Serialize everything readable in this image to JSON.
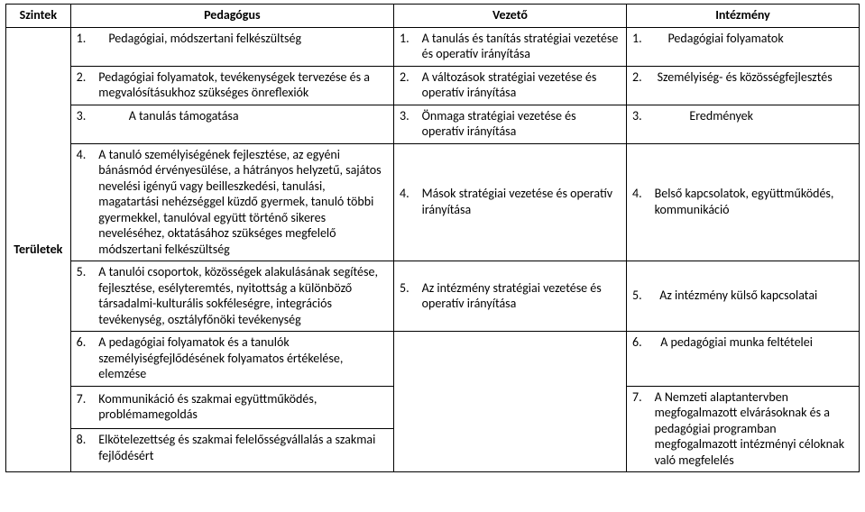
{
  "header": {
    "side": "Szintek",
    "col1": "Pedagógus",
    "col2": "Vezető",
    "col3": "Intézmény"
  },
  "side_label": "Területek",
  "rows": [
    {
      "c1": {
        "n": "1.",
        "t": "Pedagógiai, módszertani felkészültség"
      },
      "c2": {
        "n": "1.",
        "t": "A tanulás és tanítás stratégiai vezetése és operatív irányítása"
      },
      "c3": {
        "n": "1.",
        "t": "Pedagógiai folyamatok"
      }
    },
    {
      "c1": {
        "n": "2.",
        "t": "Pedagógiai folyamatok, tevékenységek tervezése és a megvalósításukhoz szükséges önreflexiók"
      },
      "c2": {
        "n": "2.",
        "t": "A változások stratégiai vezetése és operatív irányítása"
      },
      "c3": {
        "n": "2.",
        "t": "Személyiség- és közösségfejlesztés"
      }
    },
    {
      "c1": {
        "n": "3.",
        "t": "A tanulás támogatása"
      },
      "c2": {
        "n": "3.",
        "t": "Önmaga stratégiai vezetése és operatív irányítása"
      },
      "c3": {
        "n": "3.",
        "t": "Eredmények"
      }
    },
    {
      "c1": {
        "n": "4.",
        "t": "A tanuló személyiségének fejlesztése, az egyéni bánásmód érvényesülése, a hátrányos helyzetű, sajátos nevelési igényű vagy beilleszkedési, tanulási, magatartási nehézséggel küzdő gyermek, tanuló többi gyermekkel, tanulóval együtt történő sikeres neveléséhez, oktatásához szükséges megfelelő módszertani felkészültség"
      },
      "c2": {
        "n": "4.",
        "t": "Mások stratégiai vezetése és operatív irányítása"
      },
      "c3": {
        "n": "4.",
        "t": "Belső kapcsolatok, együttműködés, kommunikáció"
      }
    },
    {
      "c1": {
        "n": "5.",
        "t": "A tanulói csoportok, közösségek alakulásának segítése, fejlesztése, esélyteremtés, nyitottság a különböző társadalmi-kulturális sokféleségre, integrációs tevékenység, osztályfőnöki tevékenység"
      },
      "c2": {
        "n": "5.",
        "t": "Az intézmény stratégiai vezetése és operatív irányítása"
      },
      "c3": {
        "n": "5.",
        "t": "Az intézmény külső kapcsolatai"
      }
    },
    {
      "c1": {
        "n": "6.",
        "t": "A pedagógiai folyamatok és a tanulók személyiségfejlődésének folyamatos értékelése, elemzése"
      },
      "c2": null,
      "c3": {
        "n": "6.",
        "t": "A pedagógiai munka feltételei"
      }
    },
    {
      "c1": {
        "n": "7.",
        "t": "Kommunikáció és szakmai együttműködés, problémamegoldás"
      },
      "c2": null,
      "c3": {
        "n": "7.",
        "t": "A Nemzeti alaptantervben megfogalmazott elvárásoknak és a pedagógiai programban megfogalmazott intézményi céloknak való megfelelés"
      }
    },
    {
      "c1": {
        "n": "8.",
        "t": "Elkötelezettség és szakmai felelősségvállalás a szakmai fejlődésért"
      },
      "c2": null,
      "c3": null
    }
  ]
}
